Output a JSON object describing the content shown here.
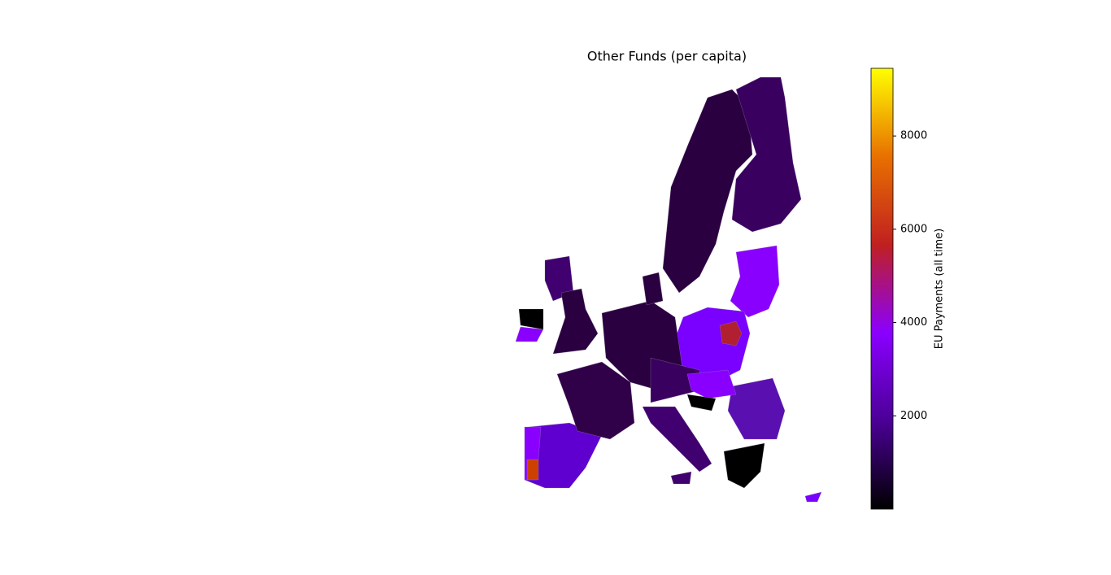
{
  "chart_data": {
    "type": "choropleth",
    "title": "Other Funds (per capita)",
    "colorbar_label": "EU Payments (all time)",
    "clim": [
      0,
      9450
    ],
    "cticks": [
      2000,
      4000,
      6000,
      8000
    ],
    "colormap": [
      "#000000",
      "#4b0096",
      "#8a00ff",
      "#c02020",
      "#e87000",
      "#ffff00"
    ]
  }
}
